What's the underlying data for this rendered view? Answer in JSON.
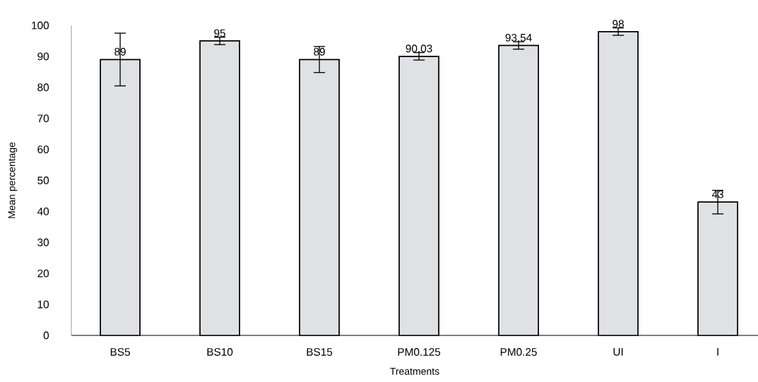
{
  "chart_data": {
    "type": "bar",
    "xlabel": "Treatments",
    "ylabel": "Mean percentage",
    "categories": [
      "BS5",
      "BS10",
      "BS15",
      "PM0.125",
      "PM0.25",
      "UI",
      "I"
    ],
    "values": [
      89,
      95,
      89,
      90.03,
      93.54,
      98,
      43
    ],
    "errors": [
      8.5,
      1.2,
      4.2,
      1.2,
      1.2,
      1.2,
      3.8
    ],
    "color": "#dfe1e4",
    "ylim": [
      0,
      100
    ],
    "yticks": [
      0,
      10,
      20,
      30,
      40,
      50,
      60,
      70,
      80,
      90,
      100
    ],
    "data_labels": true,
    "grid": false
  }
}
